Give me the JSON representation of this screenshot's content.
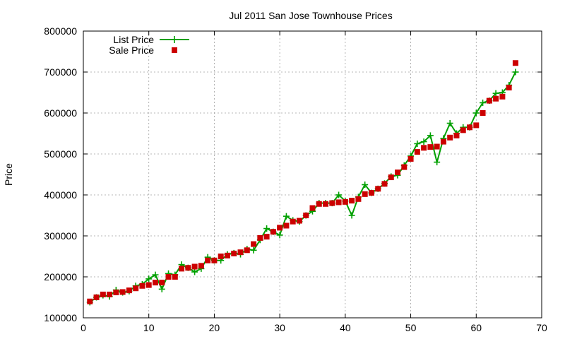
{
  "chart_data": {
    "type": "line",
    "title": "Jul 2011 San Jose Townhouse Prices",
    "xlabel": "",
    "ylabel": "Price",
    "xlim": [
      0,
      70
    ],
    "ylim": [
      100000,
      800000
    ],
    "xticks": [
      "0",
      "10",
      "20",
      "30",
      "40",
      "50",
      "60",
      "70"
    ],
    "yticks": [
      "100000",
      "200000",
      "300000",
      "400000",
      "500000",
      "600000",
      "700000",
      "800000"
    ],
    "grid": true,
    "legend_position": "top-left",
    "x": [
      1,
      2,
      3,
      4,
      5,
      6,
      7,
      8,
      9,
      10,
      11,
      12,
      13,
      14,
      15,
      16,
      17,
      18,
      19,
      20,
      21,
      22,
      23,
      24,
      25,
      26,
      27,
      28,
      29,
      30,
      31,
      32,
      33,
      34,
      35,
      36,
      37,
      38,
      39,
      40,
      41,
      42,
      43,
      44,
      45,
      46,
      47,
      48,
      49,
      50,
      51,
      52,
      53,
      54,
      55,
      56,
      57,
      58,
      59,
      60,
      61,
      62,
      63,
      64,
      65,
      66
    ],
    "series": [
      {
        "name": "List Price",
        "color": "#00a000",
        "marker": "plus",
        "style": "line",
        "values": [
          138000,
          150000,
          155000,
          152000,
          168000,
          162000,
          165000,
          178000,
          182000,
          195000,
          205000,
          170000,
          208000,
          205000,
          230000,
          222000,
          212000,
          220000,
          248000,
          240000,
          240000,
          255000,
          258000,
          255000,
          268000,
          265000,
          290000,
          318000,
          310000,
          302000,
          348000,
          338000,
          335000,
          350000,
          360000,
          380000,
          380000,
          380000,
          400000,
          385000,
          350000,
          395000,
          425000,
          405000,
          415000,
          428000,
          445000,
          448000,
          472000,
          495000,
          525000,
          530000,
          545000,
          480000,
          538000,
          575000,
          550000,
          565000,
          565000,
          600000,
          625000,
          630000,
          648000,
          650000,
          668000,
          700000
        ]
      },
      {
        "name": "Sale Price",
        "color": "#cc0000",
        "marker": "square",
        "style": "points",
        "values": [
          140000,
          150000,
          157000,
          157000,
          162000,
          163000,
          167000,
          172000,
          178000,
          180000,
          186000,
          186000,
          200000,
          200000,
          220000,
          222000,
          225000,
          227000,
          240000,
          240000,
          250000,
          252000,
          257000,
          260000,
          265000,
          280000,
          295000,
          298000,
          310000,
          320000,
          325000,
          335000,
          337000,
          350000,
          368000,
          378000,
          378000,
          380000,
          382000,
          383000,
          386000,
          390000,
          402000,
          405000,
          415000,
          427000,
          443000,
          455000,
          468000,
          488000,
          505000,
          515000,
          517000,
          518000,
          530000,
          540000,
          545000,
          558000,
          565000,
          570000,
          600000,
          630000,
          635000,
          640000,
          662000,
          722000
        ]
      }
    ]
  }
}
